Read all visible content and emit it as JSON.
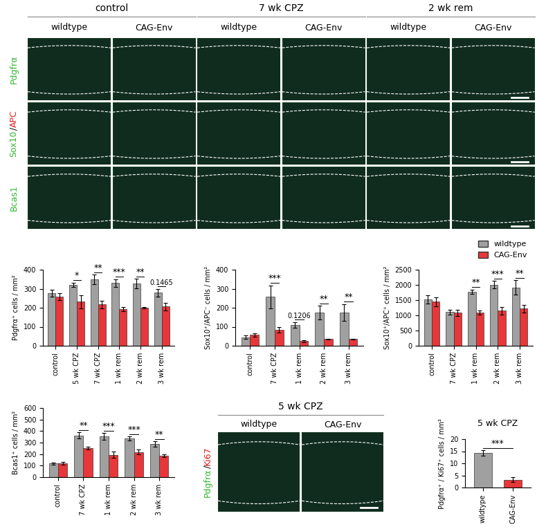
{
  "chart_data": [
    {
      "type": "bar",
      "ylabel": "Pdgfrα⁺ cells / mm²",
      "categories": [
        "control",
        "5 wk CPZ",
        "7 wk CPZ",
        "1 wk rem",
        "2 wk rem",
        "3 wk rem"
      ],
      "series": [
        {
          "name": "wildtype",
          "color": "#a0a0a0",
          "values": [
            278,
            320,
            348,
            330,
            328,
            280
          ],
          "errors": [
            18,
            12,
            25,
            20,
            25,
            20
          ]
        },
        {
          "name": "CAG-Env",
          "color": "#e8373a",
          "values": [
            257,
            232,
            218,
            193,
            200,
            207
          ],
          "errors": [
            18,
            35,
            20,
            10,
            5,
            20
          ]
        }
      ],
      "ylim": [
        0,
        400
      ],
      "yticks": [
        0,
        100,
        200,
        300,
        400
      ],
      "annotations": [
        null,
        "*",
        "**",
        "***",
        "**",
        "0.1465"
      ]
    },
    {
      "type": "bar",
      "ylabel": "Sox10⁺/APC⁻ cells / mm²",
      "categories": [
        "control",
        "7 wk CPZ",
        "1 wk rem",
        "2 wk rem",
        "3 wk rem"
      ],
      "series": [
        {
          "name": "wildtype",
          "color": "#a0a0a0",
          "values": [
            45,
            258,
            110,
            175,
            175
          ],
          "errors": [
            8,
            60,
            15,
            35,
            45
          ]
        },
        {
          "name": "CAG-Env",
          "color": "#e8373a",
          "values": [
            57,
            85,
            25,
            35,
            35
          ],
          "errors": [
            10,
            15,
            5,
            3,
            3
          ]
        }
      ],
      "ylim": [
        0,
        400
      ],
      "yticks": [
        0,
        100,
        200,
        300,
        400
      ],
      "annotations": [
        null,
        "***",
        "0.1206",
        "**",
        "**"
      ]
    },
    {
      "type": "bar",
      "ylabel": "Sox10⁺/APC⁺ cells / mm²",
      "categories": [
        "control",
        "7 wk CPZ",
        "1 wk rem",
        "2 wk rem",
        "3 wk rem"
      ],
      "series": [
        {
          "name": "wildtype",
          "color": "#a0a0a0",
          "values": [
            1520,
            1110,
            1780,
            2010,
            1920
          ],
          "errors": [
            130,
            80,
            70,
            130,
            230
          ]
        },
        {
          "name": "CAG-Env",
          "color": "#e8373a",
          "values": [
            1450,
            1080,
            1090,
            1150,
            1220
          ],
          "errors": [
            150,
            110,
            60,
            130,
            130
          ]
        }
      ],
      "ylim": [
        0,
        2500
      ],
      "yticks": [
        0,
        500,
        1000,
        1500,
        2000,
        2500
      ],
      "annotations": [
        null,
        null,
        "**",
        "***",
        "**"
      ],
      "legend": "upper right"
    },
    {
      "type": "bar",
      "ylabel": "Bcas1⁺ cells / mm²",
      "categories": [
        "control",
        "7 wk CPZ",
        "1 wk rem",
        "2 wk rem",
        "3 wk rem"
      ],
      "series": [
        {
          "name": "wildtype",
          "color": "#a0a0a0",
          "values": [
            118,
            362,
            355,
            335,
            288
          ],
          "errors": [
            10,
            28,
            28,
            18,
            22
          ]
        },
        {
          "name": "CAG-Env",
          "color": "#e8373a",
          "values": [
            120,
            255,
            195,
            218,
            187
          ],
          "errors": [
            10,
            12,
            25,
            20,
            10
          ]
        }
      ],
      "ylim": [
        0,
        600
      ],
      "yticks": [
        0,
        100,
        200,
        300,
        400,
        500,
        600
      ],
      "annotations": [
        null,
        "**",
        "***",
        "***",
        "**"
      ]
    },
    {
      "type": "bar",
      "title": "5 wk CPZ",
      "ylabel": "Pdgfrα⁺ / Ki67⁺ cells / mm²",
      "categories": [
        "wildtype",
        "CAG-Env"
      ],
      "values": [
        14.3,
        3.2
      ],
      "errors": [
        1.2,
        1.0
      ],
      "colors": [
        "#a0a0a0",
        "#e8373a"
      ],
      "ylim": [
        0,
        20
      ],
      "yticks": [
        0,
        5,
        10,
        15,
        20
      ],
      "bracket_annotation": "***"
    }
  ],
  "micrographs": {
    "top": {
      "groups": [
        "control",
        "7 wk CPZ",
        "2 wk rem"
      ],
      "genotypes": [
        "wildtype",
        "CAG-Env"
      ],
      "stains": [
        {
          "parts": [
            "Pdgfrα"
          ],
          "colors": [
            "#2fb82f"
          ]
        },
        {
          "parts": [
            "Sox10",
            "/",
            "APC"
          ],
          "colors": [
            "#2fb82f",
            "#000000",
            "#e02020"
          ]
        },
        {
          "parts": [
            "Bcas1"
          ],
          "colors": [
            "#2fb82f"
          ]
        }
      ]
    },
    "bottom": {
      "group": "5 wk CPZ",
      "genotypes": [
        "wildtype",
        "CAG-Env"
      ],
      "stain": {
        "parts": [
          "Pdgfrα",
          "/",
          "Ki67"
        ],
        "colors": [
          "#2fb82f",
          "#000000",
          "#e02020"
        ]
      }
    }
  }
}
